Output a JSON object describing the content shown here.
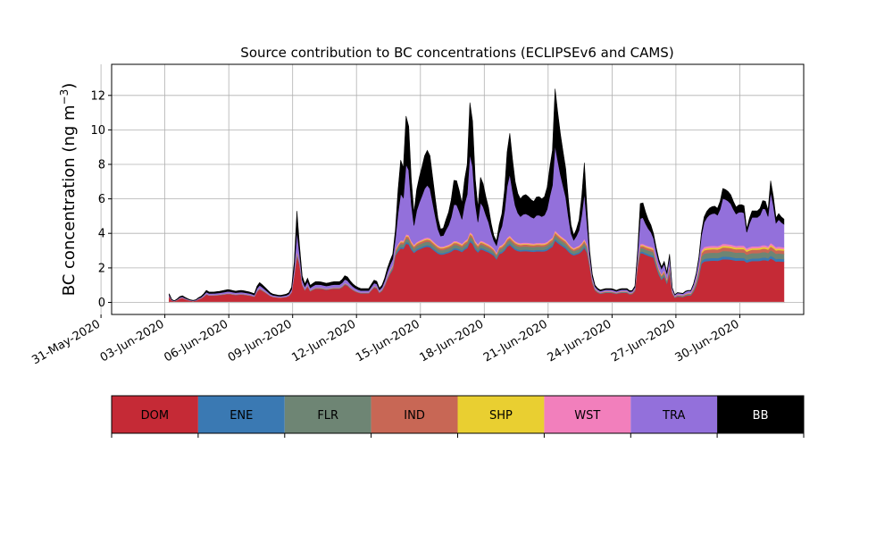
{
  "chart_data": {
    "type": "area",
    "stacked": true,
    "title": "Source contribution to BC concentrations (ECLIPSEv6 and CAMS)",
    "ylabel_main": "BC concentration (ng m",
    "ylabel_sup": "−3",
    "ylabel_close": ")",
    "ylim": [
      -0.7,
      13.8
    ],
    "yticks": [
      0,
      2,
      4,
      6,
      8,
      10,
      12
    ],
    "xlim_day": [
      0.5,
      33.0
    ],
    "grid": true,
    "x_start_day": 3.2,
    "x_step_days": 0.125,
    "xticks": [
      {
        "day": 0,
        "label": "31-May-2020"
      },
      {
        "day": 3,
        "label": "03-Jun-2020"
      },
      {
        "day": 6,
        "label": "06-Jun-2020"
      },
      {
        "day": 9,
        "label": "09-Jun-2020"
      },
      {
        "day": 12,
        "label": "12-Jun-2020"
      },
      {
        "day": 15,
        "label": "15-Jun-2020"
      },
      {
        "day": 18,
        "label": "18-Jun-2020"
      },
      {
        "day": 21,
        "label": "21-Jun-2020"
      },
      {
        "day": 24,
        "label": "24-Jun-2020"
      },
      {
        "day": 27,
        "label": "27-Jun-2020"
      },
      {
        "day": 30,
        "label": "30-Jun-2020"
      }
    ],
    "total_keypoints": [
      [
        3.2,
        0.5
      ],
      [
        3.35,
        0.1
      ],
      [
        3.5,
        0.1
      ],
      [
        3.65,
        0.3
      ],
      [
        3.8,
        0.4
      ],
      [
        4.0,
        0.25
      ],
      [
        4.2,
        0.15
      ],
      [
        4.4,
        0.1
      ],
      [
        4.6,
        0.3
      ],
      [
        4.8,
        0.4
      ],
      [
        4.9,
        0.8
      ],
      [
        5.0,
        0.6
      ],
      [
        5.3,
        0.6
      ],
      [
        5.6,
        0.65
      ],
      [
        6.0,
        0.75
      ],
      [
        6.3,
        0.65
      ],
      [
        6.6,
        0.7
      ],
      [
        7.0,
        0.6
      ],
      [
        7.2,
        0.5
      ],
      [
        7.4,
        1.2
      ],
      [
        7.6,
        1.0
      ],
      [
        8.0,
        0.5
      ],
      [
        8.4,
        0.4
      ],
      [
        8.8,
        0.5
      ],
      [
        9.0,
        1.0
      ],
      [
        9.1,
        2.8
      ],
      [
        9.2,
        5.3
      ],
      [
        9.3,
        3.8
      ],
      [
        9.4,
        1.8
      ],
      [
        9.55,
        1.0
      ],
      [
        9.7,
        1.4
      ],
      [
        9.85,
        0.9
      ],
      [
        10.0,
        1.2
      ],
      [
        10.3,
        1.2
      ],
      [
        10.6,
        1.1
      ],
      [
        10.9,
        1.2
      ],
      [
        11.2,
        1.2
      ],
      [
        11.4,
        1.4
      ],
      [
        11.5,
        1.7
      ],
      [
        11.6,
        1.4
      ],
      [
        11.8,
        1.1
      ],
      [
        12.0,
        0.9
      ],
      [
        12.2,
        0.8
      ],
      [
        12.4,
        0.8
      ],
      [
        12.6,
        0.8
      ],
      [
        12.8,
        1.3
      ],
      [
        13.0,
        1.2
      ],
      [
        13.1,
        0.7
      ],
      [
        13.3,
        1.3
      ],
      [
        13.5,
        2.2
      ],
      [
        13.7,
        2.8
      ],
      [
        13.85,
        4.5
      ],
      [
        14.0,
        7.5
      ],
      [
        14.1,
        8.5
      ],
      [
        14.2,
        7.8
      ],
      [
        14.35,
        11.4
      ],
      [
        14.45,
        10.2
      ],
      [
        14.6,
        6.5
      ],
      [
        14.7,
        5.2
      ],
      [
        14.85,
        6.8
      ],
      [
        15.0,
        7.5
      ],
      [
        15.2,
        8.5
      ],
      [
        15.4,
        9.0
      ],
      [
        15.6,
        7.0
      ],
      [
        15.8,
        5.0
      ],
      [
        16.0,
        4.0
      ],
      [
        16.2,
        4.8
      ],
      [
        16.4,
        5.5
      ],
      [
        16.6,
        7.3
      ],
      [
        16.8,
        6.8
      ],
      [
        16.9,
        5.5
      ],
      [
        17.0,
        6.0
      ],
      [
        17.1,
        7.5
      ],
      [
        17.2,
        8.0
      ],
      [
        17.35,
        12.3
      ],
      [
        17.45,
        10.5
      ],
      [
        17.6,
        6.5
      ],
      [
        17.7,
        5.5
      ],
      [
        17.85,
        7.6
      ],
      [
        18.0,
        6.5
      ],
      [
        18.2,
        5.5
      ],
      [
        18.4,
        4.0
      ],
      [
        18.6,
        3.5
      ],
      [
        18.7,
        4.5
      ],
      [
        18.9,
        5.5
      ],
      [
        19.05,
        8.5
      ],
      [
        19.2,
        9.8
      ],
      [
        19.35,
        8.0
      ],
      [
        19.5,
        6.5
      ],
      [
        19.7,
        6.0
      ],
      [
        19.9,
        6.3
      ],
      [
        20.1,
        6.1
      ],
      [
        20.3,
        5.8
      ],
      [
        20.5,
        6.2
      ],
      [
        20.7,
        6.0
      ],
      [
        20.9,
        6.2
      ],
      [
        21.05,
        7.6
      ],
      [
        21.2,
        8.8
      ],
      [
        21.35,
        13.1
      ],
      [
        21.45,
        11.0
      ],
      [
        21.6,
        9.5
      ],
      [
        21.8,
        8.0
      ],
      [
        21.9,
        7.0
      ],
      [
        22.0,
        5.0
      ],
      [
        22.1,
        4.3
      ],
      [
        22.2,
        3.9
      ],
      [
        22.35,
        4.3
      ],
      [
        22.5,
        5.0
      ],
      [
        22.6,
        6.5
      ],
      [
        22.7,
        8.1
      ],
      [
        22.8,
        5.8
      ],
      [
        22.9,
        4.0
      ],
      [
        23.0,
        2.0
      ],
      [
        23.2,
        1.0
      ],
      [
        23.4,
        0.7
      ],
      [
        23.7,
        0.8
      ],
      [
        24.0,
        0.8
      ],
      [
        24.2,
        0.7
      ],
      [
        24.4,
        0.8
      ],
      [
        24.7,
        0.8
      ],
      [
        24.9,
        0.6
      ],
      [
        25.1,
        1.0
      ],
      [
        25.25,
        4.0
      ],
      [
        25.35,
        6.3
      ],
      [
        25.5,
        5.5
      ],
      [
        25.7,
        4.8
      ],
      [
        25.9,
        4.3
      ],
      [
        26.1,
        3.0
      ],
      [
        26.3,
        2.0
      ],
      [
        26.5,
        2.5
      ],
      [
        26.6,
        1.5
      ],
      [
        26.7,
        2.8
      ],
      [
        26.8,
        1.0
      ],
      [
        26.9,
        0.4
      ],
      [
        27.1,
        0.6
      ],
      [
        27.3,
        0.5
      ],
      [
        27.5,
        0.7
      ],
      [
        27.7,
        0.7
      ],
      [
        27.9,
        1.3
      ],
      [
        28.1,
        2.8
      ],
      [
        28.25,
        4.7
      ],
      [
        28.4,
        5.2
      ],
      [
        28.6,
        5.5
      ],
      [
        28.8,
        5.6
      ],
      [
        29.0,
        5.4
      ],
      [
        29.2,
        6.6
      ],
      [
        29.4,
        6.5
      ],
      [
        29.6,
        6.2
      ],
      [
        29.8,
        5.5
      ],
      [
        30.0,
        5.7
      ],
      [
        30.2,
        5.6
      ],
      [
        30.35,
        4.0
      ],
      [
        30.5,
        5.3
      ],
      [
        30.7,
        5.3
      ],
      [
        30.9,
        5.3
      ],
      [
        31.0,
        5.6
      ],
      [
        31.15,
        6.2
      ],
      [
        31.3,
        5.2
      ],
      [
        31.4,
        5.8
      ],
      [
        31.5,
        8.3
      ],
      [
        31.58,
        6.0
      ],
      [
        31.65,
        4.5
      ],
      [
        31.75,
        5.3
      ],
      [
        31.9,
        5.0
      ],
      [
        32.1,
        4.8
      ]
    ],
    "series": [
      {
        "name": "DOM",
        "color": "#c52a36",
        "weights": [
          0.55,
          0.62,
          0.58
        ],
        "share": [
          0.82,
          0.52,
          0.18
        ]
      },
      {
        "name": "ENE",
        "color": "#3a79b3",
        "weights": [
          0.01,
          0.02,
          0.035
        ],
        "share": [
          0.04,
          0.035,
          0.025
        ]
      },
      {
        "name": "FLR",
        "color": "#6e8574",
        "weights": [
          0.02,
          0.04,
          0.07
        ],
        "share": [
          0.06,
          0.05,
          0.03
        ]
      },
      {
        "name": "IND",
        "color": "#c86755",
        "weights": [
          0.015,
          0.025,
          0.045
        ],
        "share": [
          0.03,
          0.025,
          0.015
        ]
      },
      {
        "name": "SHP",
        "color": "#e9cf31",
        "weights": [
          0.005,
          0.01,
          0.02
        ],
        "share": [
          0.02,
          0.015,
          0.01
        ]
      },
      {
        "name": "WST",
        "color": "#f27fbc",
        "weights": [
          0.01,
          0.015,
          0.025
        ],
        "share": [
          0.03,
          0.025,
          0.02
        ]
      },
      {
        "name": "TRA",
        "color": "#9370db",
        "weights": [
          0.15,
          0.22,
          0.33
        ],
        "share": [
          0.0,
          0.31,
          0.72
        ]
      },
      {
        "name": "BB",
        "color": "#000000",
        "weights": [
          0.22,
          0.1,
          0.05
        ]
      }
    ],
    "legend_position": "bottom"
  }
}
